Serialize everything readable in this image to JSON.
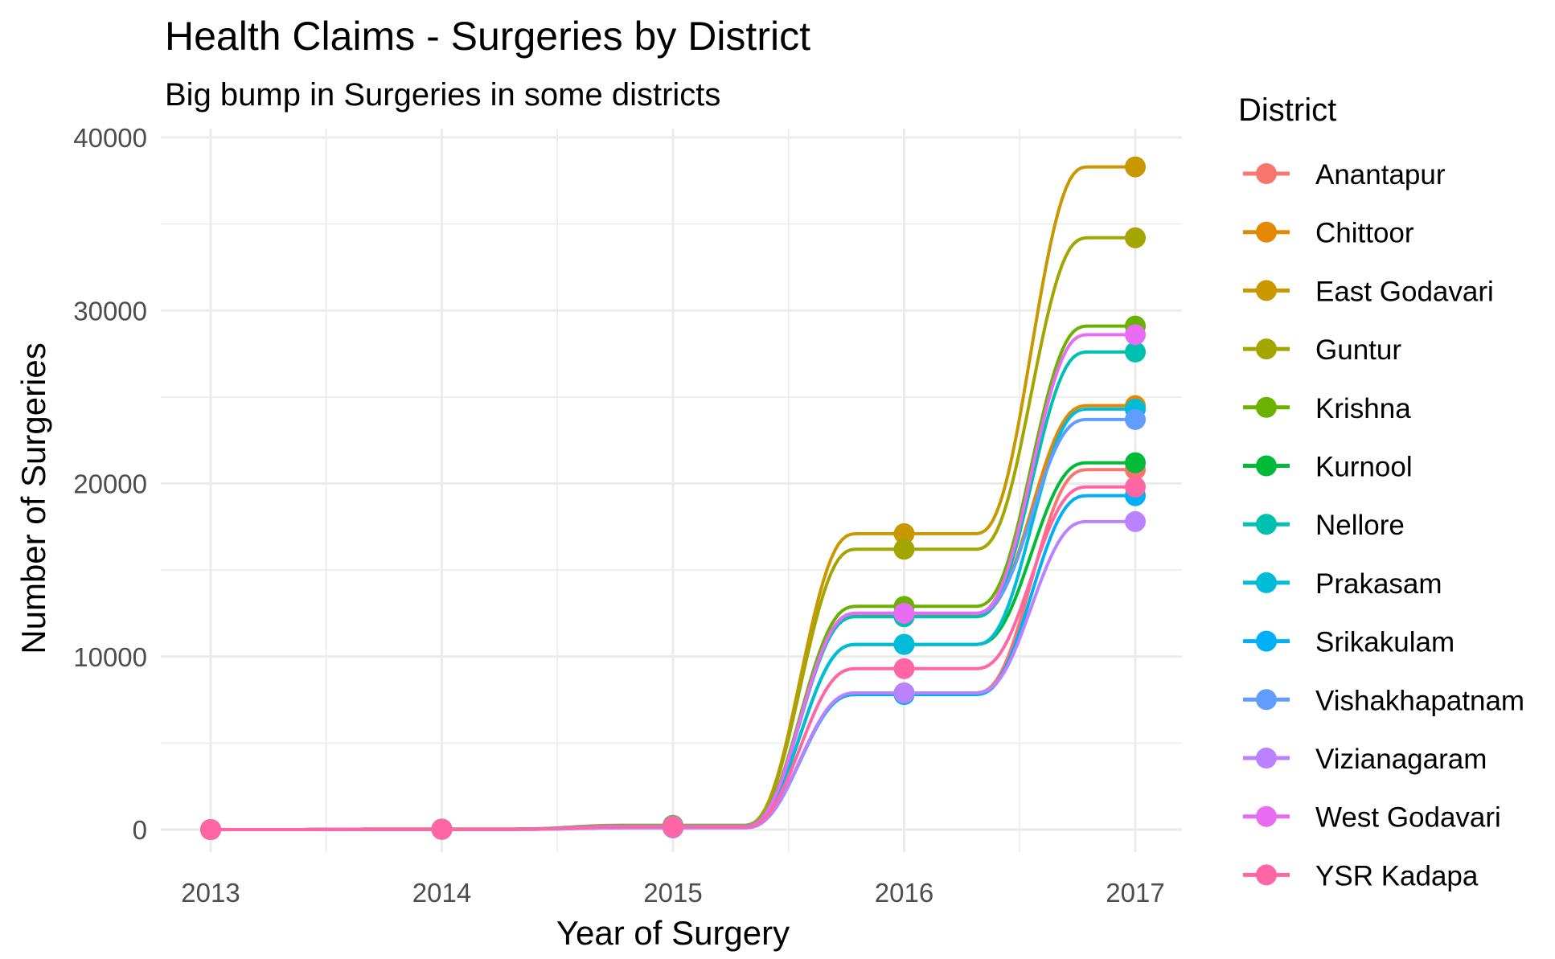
{
  "chart_data": {
    "type": "line",
    "title": "Health Claims - Surgeries by District",
    "subtitle": "Big bump in Surgeries in some districts",
    "xlabel": "Year of Surgery",
    "ylabel": "Number of Surgeries",
    "x": [
      2013,
      2014,
      2015,
      2016,
      2017
    ],
    "xlim": [
      2013,
      2017
    ],
    "ylim": [
      0,
      40000
    ],
    "y_ticks": [
      0,
      10000,
      20000,
      30000,
      40000
    ],
    "grid": true,
    "smoothed": true,
    "legend_title": "District",
    "legend_position": "right",
    "series": [
      {
        "name": "Anantapur",
        "color": "#F8766D",
        "values": [
          0,
          20,
          150,
          7900,
          20800
        ]
      },
      {
        "name": "Chittoor",
        "color": "#E58700",
        "values": [
          0,
          20,
          200,
          12400,
          24500
        ]
      },
      {
        "name": "East Godavari",
        "color": "#C99800",
        "values": [
          0,
          30,
          250,
          17100,
          38300
        ]
      },
      {
        "name": "Guntur",
        "color": "#A3A500",
        "values": [
          0,
          30,
          200,
          16200,
          34200
        ]
      },
      {
        "name": "Krishna",
        "color": "#6BB100",
        "values": [
          0,
          30,
          200,
          12900,
          29100
        ]
      },
      {
        "name": "Kurnool",
        "color": "#00BA38",
        "values": [
          0,
          20,
          150,
          10700,
          21200
        ]
      },
      {
        "name": "Nellore",
        "color": "#00C0AF",
        "values": [
          0,
          20,
          200,
          12300,
          27600
        ]
      },
      {
        "name": "Prakasam",
        "color": "#00BCD8",
        "values": [
          0,
          20,
          200,
          10700,
          24300
        ]
      },
      {
        "name": "Srikakulam",
        "color": "#00B0F6",
        "values": [
          0,
          10,
          100,
          7800,
          19300
        ]
      },
      {
        "name": "Vishakhapatnam",
        "color": "#619CFF",
        "values": [
          0,
          20,
          200,
          12500,
          23700
        ]
      },
      {
        "name": "Vizianagaram",
        "color": "#B983FF",
        "values": [
          0,
          10,
          100,
          7900,
          17800
        ]
      },
      {
        "name": "West Godavari",
        "color": "#E76BF3",
        "values": [
          0,
          20,
          150,
          12500,
          28600
        ]
      },
      {
        "name": "YSR Kadapa",
        "color": "#FF67A4",
        "values": [
          0,
          20,
          150,
          9300,
          19800
        ]
      }
    ]
  }
}
